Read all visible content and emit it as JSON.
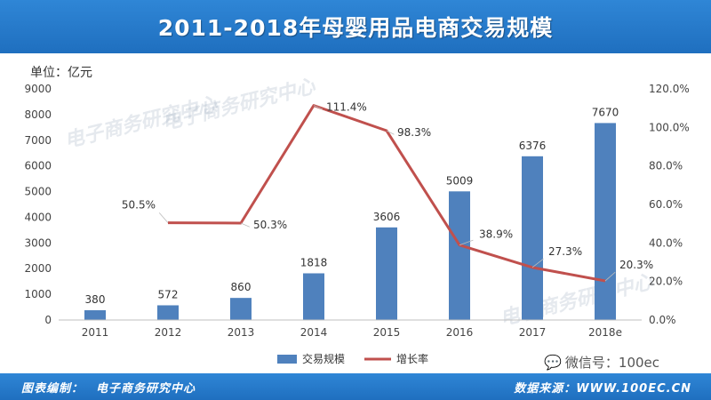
{
  "page": {
    "title": "2011-2018年母婴用品电商交易规模",
    "unit_label": "单位：亿元",
    "footer_left_label": "图表编制：",
    "footer_left_value": "电子商务研究中心",
    "footer_right": "数据来源：WWW.100EC.CN",
    "wechat_text": "微信号：100ec",
    "watermark": "电子商务研究中心"
  },
  "colors": {
    "header_bg": "#1f6fbf",
    "bar": "#4f81bd",
    "line": "#c0504d",
    "axis_text": "#444444",
    "footer_text": "#ffffff"
  },
  "chart_data": {
    "type": "bar",
    "title": "2011-2018年母婴用品电商交易规模",
    "categories": [
      "2011",
      "2012",
      "2013",
      "2014",
      "2015",
      "2016",
      "2017",
      "2018e"
    ],
    "series": [
      {
        "name": "交易规模",
        "type": "bar",
        "axis": "left",
        "values": [
          380,
          572,
          860,
          1818,
          3606,
          5009,
          6376,
          7670
        ],
        "labels": [
          "380",
          "572",
          "860",
          "1818",
          "3606",
          "5009",
          "6376",
          "7670"
        ]
      },
      {
        "name": "增长率",
        "type": "line",
        "axis": "right",
        "values": [
          null,
          50.5,
          50.3,
          111.4,
          98.3,
          38.9,
          27.3,
          20.3
        ],
        "labels": [
          "",
          "50.5%",
          "50.3%",
          "111.4%",
          "98.3%",
          "38.9%",
          "27.3%",
          "20.3%"
        ]
      }
    ],
    "y_left": {
      "min": 0,
      "max": 9000,
      "step": 1000,
      "ticks": [
        "0",
        "1000",
        "2000",
        "3000",
        "4000",
        "5000",
        "6000",
        "7000",
        "8000",
        "9000"
      ]
    },
    "y_right": {
      "min": 0,
      "max": 120,
      "step": 20,
      "ticks": [
        "0.0%",
        "20.0%",
        "40.0%",
        "60.0%",
        "80.0%",
        "100.0%",
        "120.0%"
      ]
    },
    "ylabel": "单位：亿元",
    "legend_position": "bottom-center",
    "grid": false
  }
}
